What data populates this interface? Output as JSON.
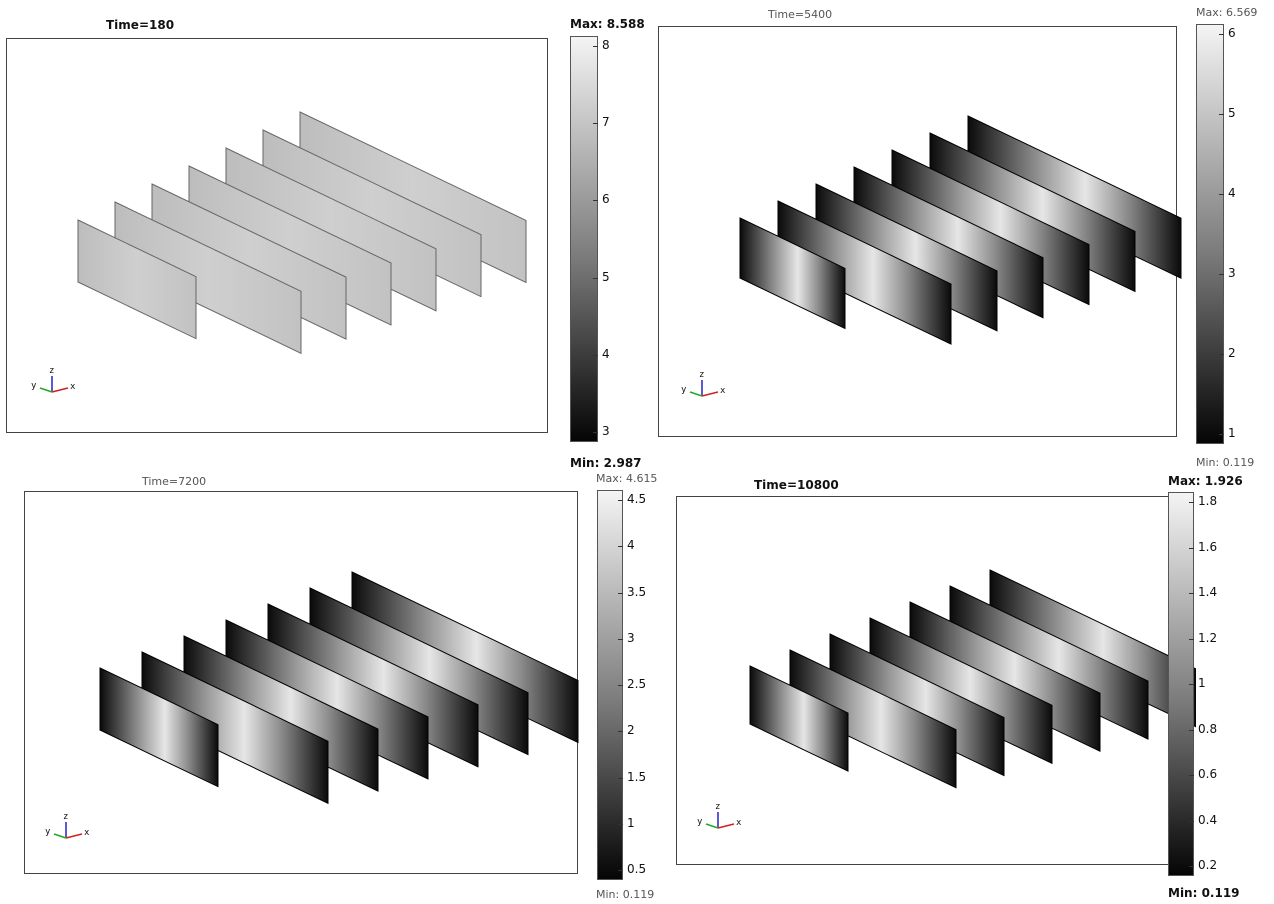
{
  "panels": [
    {
      "id": "t180",
      "title": "Time=180",
      "max_label": "Max: 8.588",
      "min_label": "Min: 2.987",
      "ticks": [
        "8",
        "7",
        "6",
        "5",
        "4",
        "3"
      ],
      "shading": "uniform"
    },
    {
      "id": "t5400",
      "title": "Time=5400",
      "max_label": "Max: 6.569",
      "min_label": "Min: 0.119",
      "ticks": [
        "6",
        "5",
        "4",
        "3",
        "2",
        "1"
      ],
      "shading": "gradient"
    },
    {
      "id": "t7200",
      "title": "Time=7200",
      "max_label": "Max: 4.615",
      "min_label": "Min: 0.119",
      "ticks": [
        "4.5",
        "4",
        "3.5",
        "3",
        "2.5",
        "2",
        "1.5",
        "1",
        "0.5"
      ],
      "shading": "gradient"
    },
    {
      "id": "t10800",
      "title": "Time=10800",
      "max_label": "Max: 1.926",
      "min_label": "Min: 0.119",
      "ticks": [
        "1.8",
        "1.6",
        "1.4",
        "1.2",
        "1",
        "0.8",
        "0.6",
        "0.4",
        "0.2"
      ],
      "shading": "gradient"
    }
  ],
  "axis_labels": {
    "x": "x",
    "y": "y",
    "z": "z"
  },
  "colors": {
    "frame": "#444444",
    "plate_uniform": "#c8c8c8",
    "plate_dark": "#0a0a0a",
    "plate_light": "#e6e6e6",
    "axis_x": "#cc2222",
    "axis_y": "#22aa22",
    "axis_z": "#2222cc"
  }
}
